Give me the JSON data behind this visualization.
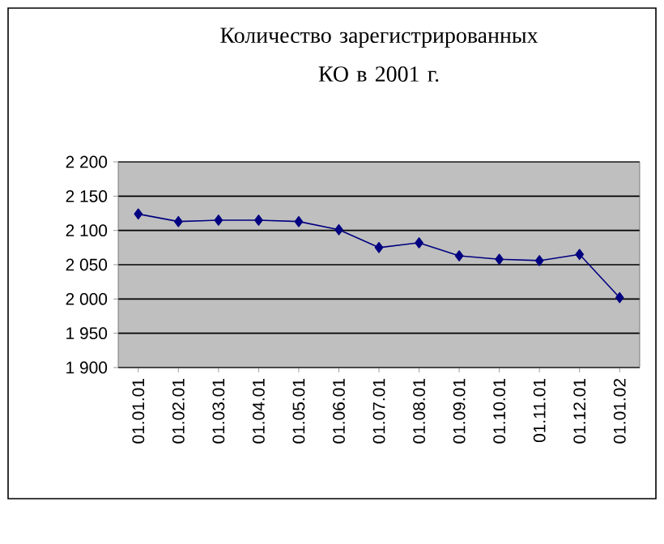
{
  "chart_data": {
    "type": "line",
    "title": "Количество зарегистрированных КО в 2001 г.",
    "categories": [
      "01.01.01",
      "01.02.01",
      "01.03.01",
      "01.04.01",
      "01.05.01",
      "01.06.01",
      "01.07.01",
      "01.08.01",
      "01.09.01",
      "01.10.01",
      "01.11.01",
      "01.12.01",
      "01.01.02"
    ],
    "series": [
      {
        "color": "#000080",
        "values": [
          2124,
          2113,
          2115,
          2115,
          2113,
          2101,
          2075,
          2082,
          2063,
          2058,
          2056,
          2065,
          2002
        ]
      }
    ],
    "ylim": [
      1900,
      2200
    ],
    "yticks": [
      {
        "value": 1900,
        "label": "1 900"
      },
      {
        "value": 1950,
        "label": "1 950"
      },
      {
        "value": 2000,
        "label": "2 000"
      },
      {
        "value": 2050,
        "label": "2 050"
      },
      {
        "value": 2100,
        "label": "2 100"
      },
      {
        "value": 2150,
        "label": "2 150"
      },
      {
        "value": 2200,
        "label": "2 200"
      }
    ],
    "grid": "y",
    "marker": "diamond",
    "line_style": "solid"
  }
}
